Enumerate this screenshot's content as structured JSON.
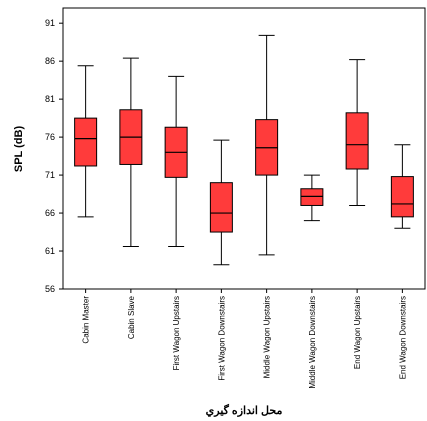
{
  "chart_data": {
    "type": "box",
    "title": "",
    "xlabel": "محل اندازه گيري",
    "ylabel": "SPL (dB)",
    "ylim": [
      56,
      93
    ],
    "yticks": [
      56,
      61,
      66,
      71,
      76,
      81,
      86,
      91
    ],
    "grid": false,
    "legend": "none",
    "box_color": "#ff3b3b",
    "categories": [
      "Cabin Master",
      "Cabin Slave",
      "First Wagon Upstairs",
      "First Wagon Downstairs",
      "Middle Wagon Upstairs",
      "Middle Wagon Downstairs",
      "End Wagon Upstairs",
      "End Wagon Downstairs"
    ],
    "boxes": [
      {
        "min": 65.5,
        "q1": 72.2,
        "median": 75.8,
        "q3": 78.5,
        "max": 85.4
      },
      {
        "min": 61.6,
        "q1": 72.4,
        "median": 76.0,
        "q3": 79.6,
        "max": 86.4
      },
      {
        "min": 61.6,
        "q1": 70.7,
        "median": 74.0,
        "q3": 77.3,
        "max": 84.0
      },
      {
        "min": 59.2,
        "q1": 63.5,
        "median": 66.0,
        "q3": 70.0,
        "max": 75.6
      },
      {
        "min": 60.5,
        "q1": 71.0,
        "median": 74.6,
        "q3": 78.3,
        "max": 89.4
      },
      {
        "min": 65.0,
        "q1": 67.0,
        "median": 68.2,
        "q3": 69.2,
        "max": 71.0
      },
      {
        "min": 67.0,
        "q1": 71.8,
        "median": 75.0,
        "q3": 79.2,
        "max": 86.2
      },
      {
        "min": 64.0,
        "q1": 65.5,
        "median": 67.2,
        "q3": 70.8,
        "max": 75.0
      }
    ]
  }
}
